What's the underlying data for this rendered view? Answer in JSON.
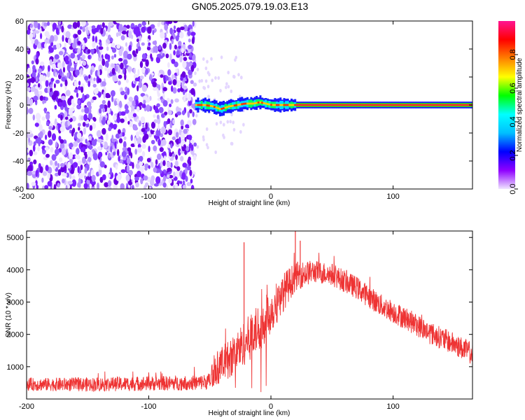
{
  "chart_data": [
    {
      "type": "heatmap",
      "title": "GN05.2025.079.19.03.E13",
      "xlabel": "Height of straight line (km)",
      "ylabel": "Frequency (Hz)",
      "xlim": [
        -200,
        165
      ],
      "ylim": [
        -60,
        60
      ],
      "xticks": [
        -200,
        -100,
        0,
        100
      ],
      "yticks": [
        60,
        40,
        20,
        0,
        -20,
        -40,
        -60
      ],
      "colorbar": {
        "label": "Normalized spectral amplitude",
        "range": [
          0,
          1
        ],
        "ticks": [
          0.0,
          0.2,
          0.4,
          0.6,
          0.8
        ],
        "tick_labels": [
          "0.0",
          "0.2",
          "0.4",
          "0.6",
          "0.8"
        ],
        "colors": [
          "#f0e6ff",
          "#8f00ff",
          "#0000ff",
          "#00bfff",
          "#00ffff",
          "#00ff00",
          "#ffff00",
          "#ff8000",
          "#ff0000",
          "#ff1493"
        ]
      },
      "noise_region_x": [
        -200,
        -62
      ],
      "signal_band_x": [
        -62,
        165
      ],
      "signal_center_hz": [
        {
          "x": -62,
          "y": 0
        },
        {
          "x": -55,
          "y": 0
        },
        {
          "x": -48,
          "y": -1
        },
        {
          "x": -42,
          "y": -3
        },
        {
          "x": -35,
          "y": -1
        },
        {
          "x": -28,
          "y": 0
        },
        {
          "x": -22,
          "y": 1
        },
        {
          "x": -15,
          "y": 1
        },
        {
          "x": -10,
          "y": 2
        },
        {
          "x": -5,
          "y": 1
        },
        {
          "x": 0,
          "y": 0
        },
        {
          "x": 20,
          "y": 0
        },
        {
          "x": 60,
          "y": 0
        },
        {
          "x": 100,
          "y": 0
        },
        {
          "x": 165,
          "y": 0
        }
      ]
    },
    {
      "type": "line",
      "xlabel": "Height of straight line (km)",
      "ylabel": "SNR (10 * v/v)",
      "xlim": [
        -200,
        165
      ],
      "ylim": [
        0,
        5200
      ],
      "xticks": [
        -200,
        -100,
        0,
        100
      ],
      "yticks": [
        1000,
        2000,
        3000,
        4000,
        5000
      ],
      "color": "#ee3333",
      "series": [
        {
          "envelope": [
            {
              "x": -200,
              "mean": 450,
              "spread": 200
            },
            {
              "x": -150,
              "mean": 450,
              "spread": 220
            },
            {
              "x": -100,
              "mean": 480,
              "spread": 230
            },
            {
              "x": -60,
              "mean": 500,
              "spread": 230
            },
            {
              "x": -50,
              "mean": 550,
              "spread": 260
            },
            {
              "x": -47,
              "mean": 900,
              "spread": 500
            },
            {
              "x": -35,
              "mean": 1200,
              "spread": 600
            },
            {
              "x": -20,
              "mean": 1800,
              "spread": 700
            },
            {
              "x": -10,
              "mean": 2200,
              "spread": 750
            },
            {
              "x": 0,
              "mean": 2700,
              "spread": 700
            },
            {
              "x": 10,
              "mean": 3300,
              "spread": 600
            },
            {
              "x": 20,
              "mean": 3800,
              "spread": 450
            },
            {
              "x": 35,
              "mean": 3950,
              "spread": 350
            },
            {
              "x": 50,
              "mean": 3850,
              "spread": 350
            },
            {
              "x": 70,
              "mean": 3450,
              "spread": 350
            },
            {
              "x": 90,
              "mean": 2900,
              "spread": 350
            },
            {
              "x": 110,
              "mean": 2500,
              "spread": 350
            },
            {
              "x": 130,
              "mean": 2050,
              "spread": 350
            },
            {
              "x": 150,
              "mean": 1700,
              "spread": 350
            },
            {
              "x": 165,
              "mean": 1400,
              "spread": 350
            }
          ],
          "spikes": [
            {
              "x": -22,
              "y": 4850
            },
            {
              "x": 20,
              "y": 5200
            },
            {
              "x": 24,
              "y": 4900
            }
          ]
        }
      ]
    }
  ]
}
